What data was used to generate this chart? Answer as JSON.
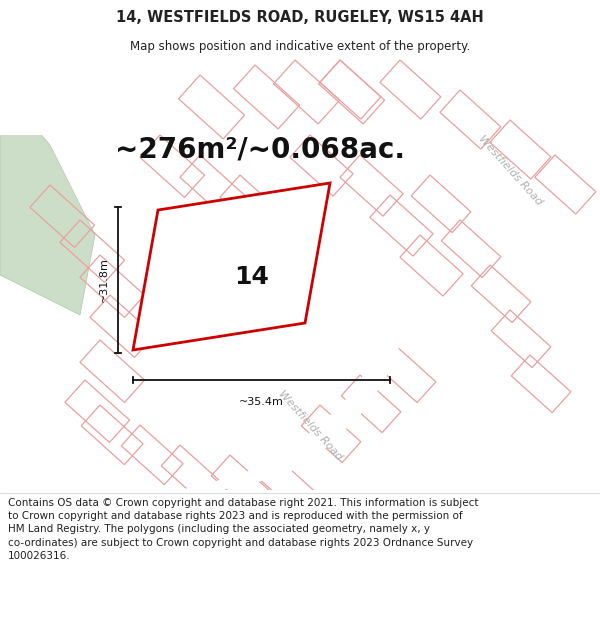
{
  "title": "14, WESTFIELDS ROAD, RUGELEY, WS15 4AH",
  "subtitle": "Map shows position and indicative extent of the property.",
  "area_text": "~276m²/~0.068ac.",
  "width_label": "~35.4m",
  "height_label": "~31.8m",
  "property_number": "14",
  "footer_lines": [
    "Contains OS data © Crown copyright and database right 2021. This information is subject to Crown copyright and database rights 2023 and is reproduced with the permission of",
    "HM Land Registry. The polygons (including the associated geometry, namely x, y co-ordinates) are subject to Crown copyright and database rights 2023 Ordnance Survey",
    "100026316."
  ],
  "map_bg": "#f2f0ed",
  "plot_fill": "#f2f0ed",
  "plot_outline_red": "#cc0000",
  "green_area_fill": "#cddec8",
  "green_area_edge": "#b0c8aa",
  "plot_outline_pink": "#e8a0a0",
  "road_fill": "#ffffff",
  "road_label_color": "#b0b0b0",
  "dim_color": "#111111",
  "text_color": "#222222",
  "title_fontsize": 10.5,
  "subtitle_fontsize": 8.5,
  "area_fontsize": 20,
  "footer_fontsize": 7.5,
  "property_num_fontsize": 18,
  "dim_label_fontsize": 8,
  "road_label_fontsize": 8
}
